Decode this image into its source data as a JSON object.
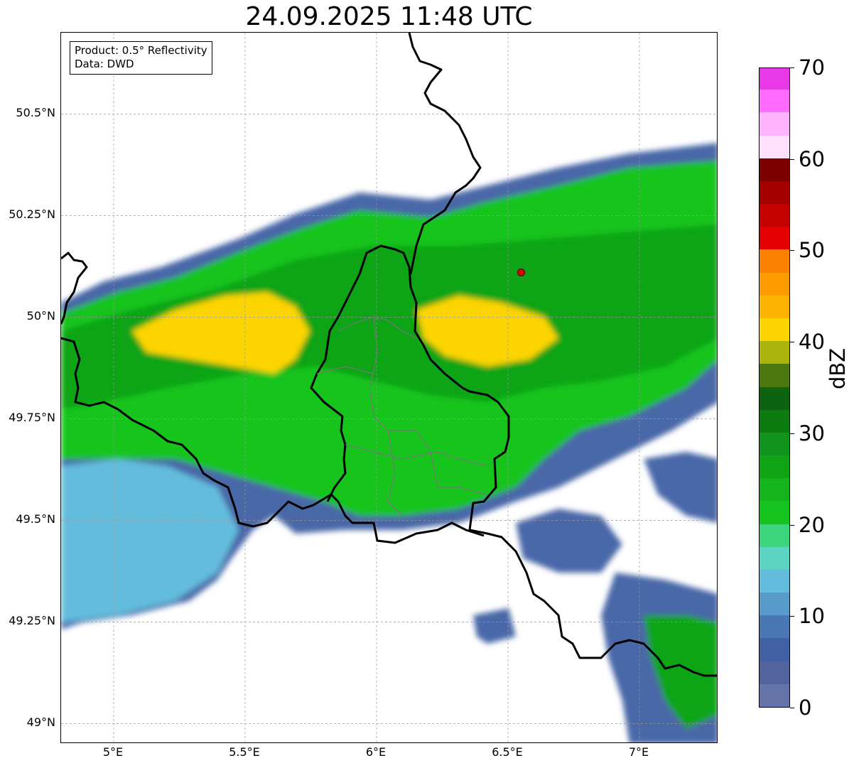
{
  "title": "24.09.2025 11:48 UTC",
  "info": {
    "product": "Product: 0.5° Reflectivity",
    "data": "Data: DWD"
  },
  "map": {
    "lon_range": [
      4.8,
      7.3
    ],
    "lat_range": [
      48.95,
      50.7
    ],
    "lat_ticks": [
      {
        "value": 50.5,
        "label": "50.5°N"
      },
      {
        "value": 50.25,
        "label": "50.25°N"
      },
      {
        "value": 50.0,
        "label": "50°N"
      },
      {
        "value": 49.75,
        "label": "49.75°N"
      },
      {
        "value": 49.5,
        "label": "49.5°N"
      },
      {
        "value": 49.25,
        "label": "49.25°N"
      },
      {
        "value": 49.0,
        "label": "49°N"
      }
    ],
    "lon_ticks": [
      {
        "value": 5.0,
        "label": "5°E"
      },
      {
        "value": 5.5,
        "label": "5.5°E"
      },
      {
        "value": 6.0,
        "label": "6°E"
      },
      {
        "value": 6.5,
        "label": "6.5°E"
      },
      {
        "value": 7.0,
        "label": "7°E"
      }
    ],
    "grid": true,
    "radar_site": {
      "lon": 6.55,
      "lat": 50.11,
      "color": "#e00000"
    }
  },
  "colorbar": {
    "label": "dBZ",
    "min": 0,
    "max": 70,
    "ticks": [
      {
        "value": 0,
        "label": "0"
      },
      {
        "value": 10,
        "label": "10"
      },
      {
        "value": 20,
        "label": "20"
      },
      {
        "value": 30,
        "label": "30"
      },
      {
        "value": 40,
        "label": "40"
      },
      {
        "value": 50,
        "label": "50"
      },
      {
        "value": 60,
        "label": "60"
      },
      {
        "value": 70,
        "label": "70"
      }
    ],
    "colors": [
      "#6474a8",
      "#52649e",
      "#4260a6",
      "#4a78b4",
      "#589ccc",
      "#64bcdc",
      "#5cd4c4",
      "#3cd47c",
      "#14c41c",
      "#14b41c",
      "#10a414",
      "#10941c",
      "#0c7c10",
      "#0c6410",
      "#4c7810",
      "#acb40c",
      "#fcd400",
      "#fcb400",
      "#fc9c00",
      "#fc8000",
      "#e40000",
      "#c40000",
      "#a40000",
      "#7c0000",
      "#ffe0ff",
      "#ffb4ff",
      "#ff6cff",
      "#e838e8"
    ]
  },
  "reflectivity_palette": {
    "light_blue": "#64bcdc",
    "blue": "#4a68a8",
    "cyan": "#5cd4c4",
    "light_green": "#14c41c",
    "green": "#10a414",
    "dark_green": "#0c7c10",
    "olive": "#4c7810",
    "yellow": "#fcd400",
    "orange": "#fcb400"
  }
}
